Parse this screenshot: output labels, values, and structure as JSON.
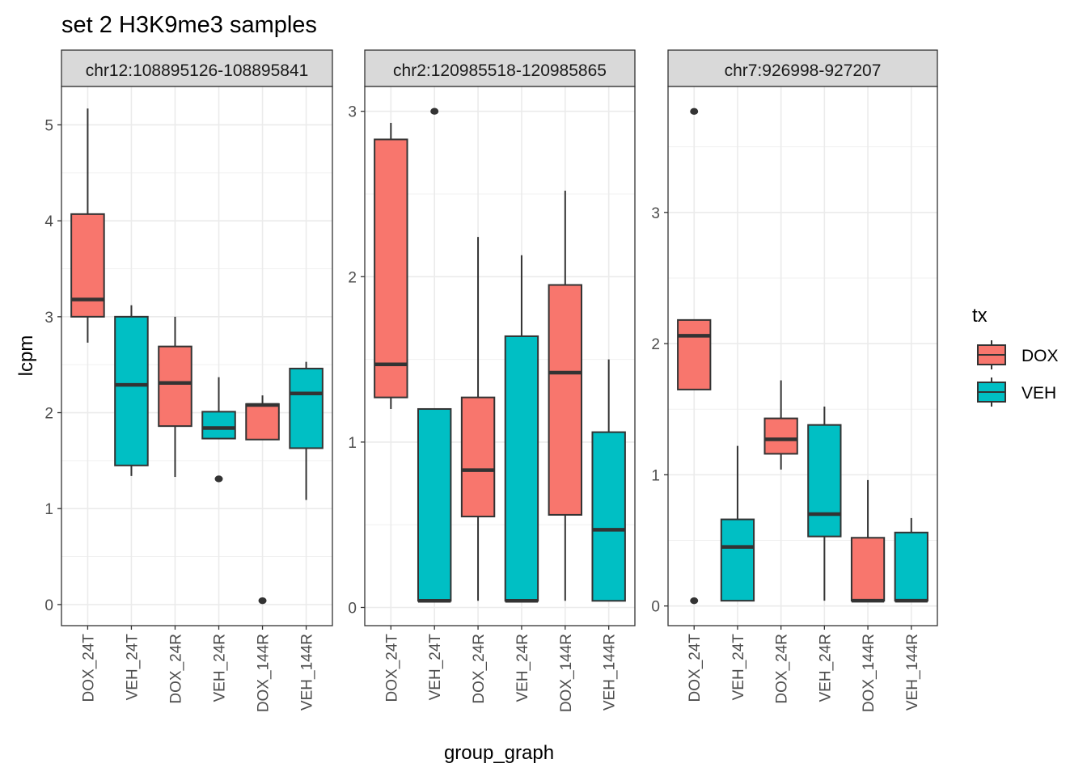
{
  "chart_data": {
    "type": "boxplot",
    "title": "set 2 H3K9me3 samples",
    "xlabel": "group_graph",
    "ylabel": "lcpm",
    "categories": [
      "DOX_24T",
      "VEH_24T",
      "DOX_24R",
      "VEH_24R",
      "DOX_144R",
      "VEH_144R"
    ],
    "legend": {
      "title": "tx",
      "position": "right",
      "entries": [
        {
          "label": "DOX",
          "color": "#F8766D"
        },
        {
          "label": "VEH",
          "color": "#00BFC4"
        }
      ]
    },
    "grid": true,
    "panels": [
      {
        "strip": "chr12:108895126-108895841",
        "ylim": [
          -0.22,
          5.4
        ],
        "yticks": [
          0,
          1,
          2,
          3,
          4,
          5
        ],
        "boxes": [
          {
            "category": "DOX_24T",
            "tx": "DOX",
            "lower": 2.73,
            "q1": 3.0,
            "median": 3.18,
            "q3": 4.07,
            "upper": 5.17,
            "outliers": []
          },
          {
            "category": "VEH_24T",
            "tx": "VEH",
            "lower": 1.34,
            "q1": 1.45,
            "median": 2.29,
            "q3": 3.0,
            "upper": 3.12,
            "outliers": []
          },
          {
            "category": "DOX_24R",
            "tx": "DOX",
            "lower": 1.33,
            "q1": 1.86,
            "median": 2.31,
            "q3": 2.69,
            "upper": 3.0,
            "outliers": []
          },
          {
            "category": "VEH_24R",
            "tx": "VEH",
            "lower": 1.73,
            "q1": 1.73,
            "median": 1.84,
            "q3": 2.01,
            "upper": 2.37,
            "outliers": [
              1.31
            ]
          },
          {
            "category": "DOX_144R",
            "tx": "DOX",
            "lower": 1.72,
            "q1": 1.72,
            "median": 2.08,
            "q3": 2.09,
            "upper": 2.18,
            "outliers": [
              0.04
            ]
          },
          {
            "category": "VEH_144R",
            "tx": "VEH",
            "lower": 1.09,
            "q1": 1.63,
            "median": 2.2,
            "q3": 2.46,
            "upper": 2.53,
            "outliers": []
          }
        ]
      },
      {
        "strip": "chr2:120985518-120985865",
        "ylim": [
          -0.11,
          3.15
        ],
        "yticks": [
          0,
          1,
          2,
          3
        ],
        "boxes": [
          {
            "category": "DOX_24T",
            "tx": "DOX",
            "lower": 1.2,
            "q1": 1.27,
            "median": 1.47,
            "q3": 2.83,
            "upper": 2.93,
            "outliers": []
          },
          {
            "category": "VEH_24T",
            "tx": "VEH",
            "lower": 0.04,
            "q1": 0.04,
            "median": 0.04,
            "q3": 1.2,
            "upper": 1.2,
            "outliers": [
              3.0
            ]
          },
          {
            "category": "DOX_24R",
            "tx": "DOX",
            "lower": 0.04,
            "q1": 0.55,
            "median": 0.83,
            "q3": 1.27,
            "upper": 2.24,
            "outliers": []
          },
          {
            "category": "VEH_24R",
            "tx": "VEH",
            "lower": 0.04,
            "q1": 0.04,
            "median": 0.04,
            "q3": 1.64,
            "upper": 2.13,
            "outliers": []
          },
          {
            "category": "DOX_144R",
            "tx": "DOX",
            "lower": 0.04,
            "q1": 0.56,
            "median": 1.42,
            "q3": 1.95,
            "upper": 2.52,
            "outliers": []
          },
          {
            "category": "VEH_144R",
            "tx": "VEH",
            "lower": 0.04,
            "q1": 0.04,
            "median": 0.47,
            "q3": 1.06,
            "upper": 1.5,
            "outliers": []
          }
        ]
      },
      {
        "strip": "chr7:926998-927207",
        "ylim": [
          -0.15,
          3.96
        ],
        "yticks": [
          0,
          1,
          2,
          3
        ],
        "boxes": [
          {
            "category": "DOX_24T",
            "tx": "DOX",
            "lower": 1.65,
            "q1": 1.65,
            "median": 2.06,
            "q3": 2.18,
            "upper": 2.18,
            "outliers": [
              3.77,
              0.04
            ]
          },
          {
            "category": "VEH_24T",
            "tx": "VEH",
            "lower": 0.04,
            "q1": 0.04,
            "median": 0.45,
            "q3": 0.66,
            "upper": 1.22,
            "outliers": []
          },
          {
            "category": "DOX_24R",
            "tx": "DOX",
            "lower": 1.04,
            "q1": 1.16,
            "median": 1.27,
            "q3": 1.43,
            "upper": 1.72,
            "outliers": []
          },
          {
            "category": "VEH_24R",
            "tx": "VEH",
            "lower": 0.04,
            "q1": 0.53,
            "median": 0.7,
            "q3": 1.38,
            "upper": 1.52,
            "outliers": []
          },
          {
            "category": "DOX_144R",
            "tx": "DOX",
            "lower": 0.04,
            "q1": 0.04,
            "median": 0.04,
            "q3": 0.52,
            "upper": 0.96,
            "outliers": []
          },
          {
            "category": "VEH_144R",
            "tx": "VEH",
            "lower": 0.04,
            "q1": 0.04,
            "median": 0.04,
            "q3": 0.56,
            "upper": 0.67,
            "outliers": []
          }
        ]
      }
    ]
  }
}
